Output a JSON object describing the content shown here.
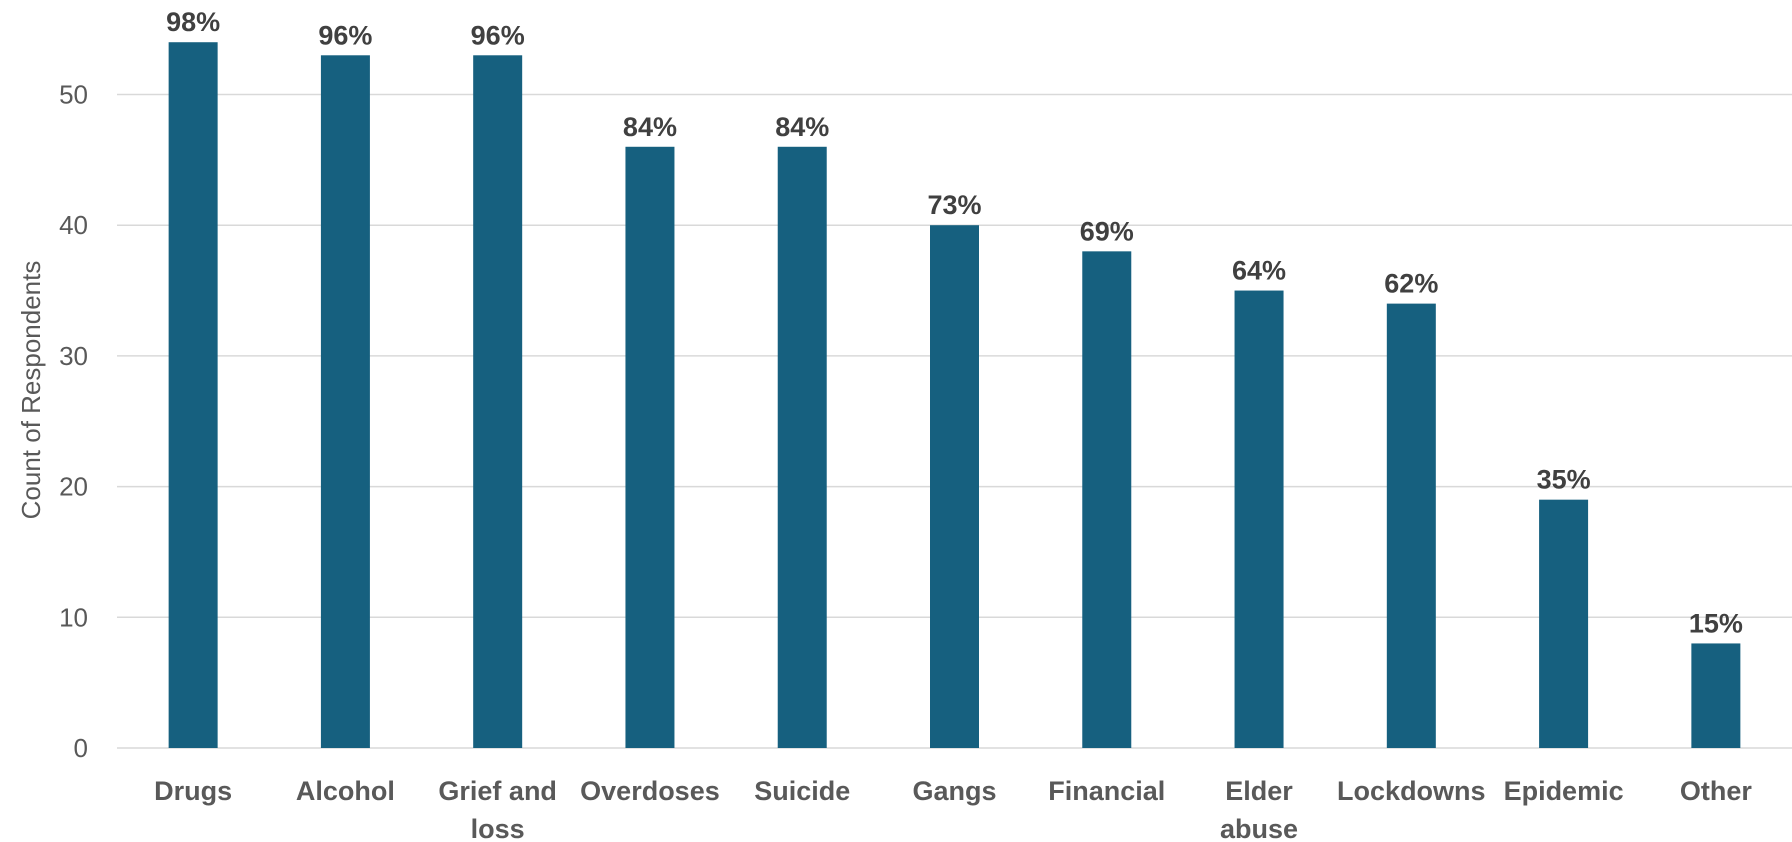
{
  "chart_data": {
    "type": "bar",
    "title": "",
    "xlabel": "",
    "ylabel": "Count of Respondents",
    "ylim": [
      0,
      54
    ],
    "yticks": [
      0,
      10,
      20,
      30,
      40,
      50
    ],
    "grid": true,
    "legend": "none",
    "bar_color": "#16607f",
    "categories": [
      "Drugs",
      "Alcohol",
      "Grief and loss",
      "Overdoses",
      "Suicide",
      "Gangs",
      "Financial",
      "Elder abuse",
      "Lockdowns",
      "Epidemic",
      "Other"
    ],
    "category_lines": [
      [
        "Drugs"
      ],
      [
        "Alcohol"
      ],
      [
        "Grief and",
        "loss"
      ],
      [
        "Overdoses"
      ],
      [
        "Suicide"
      ],
      [
        "Gangs"
      ],
      [
        "Financial"
      ],
      [
        "Elder",
        "abuse"
      ],
      [
        "Lockdowns"
      ],
      [
        "Epidemic"
      ],
      [
        "Other"
      ]
    ],
    "values": [
      54,
      53,
      53,
      46,
      46,
      40,
      38,
      35,
      34,
      19,
      8
    ],
    "data_labels": [
      "98%",
      "96%",
      "96%",
      "84%",
      "84%",
      "73%",
      "69%",
      "64%",
      "62%",
      "35%",
      "15%"
    ]
  }
}
